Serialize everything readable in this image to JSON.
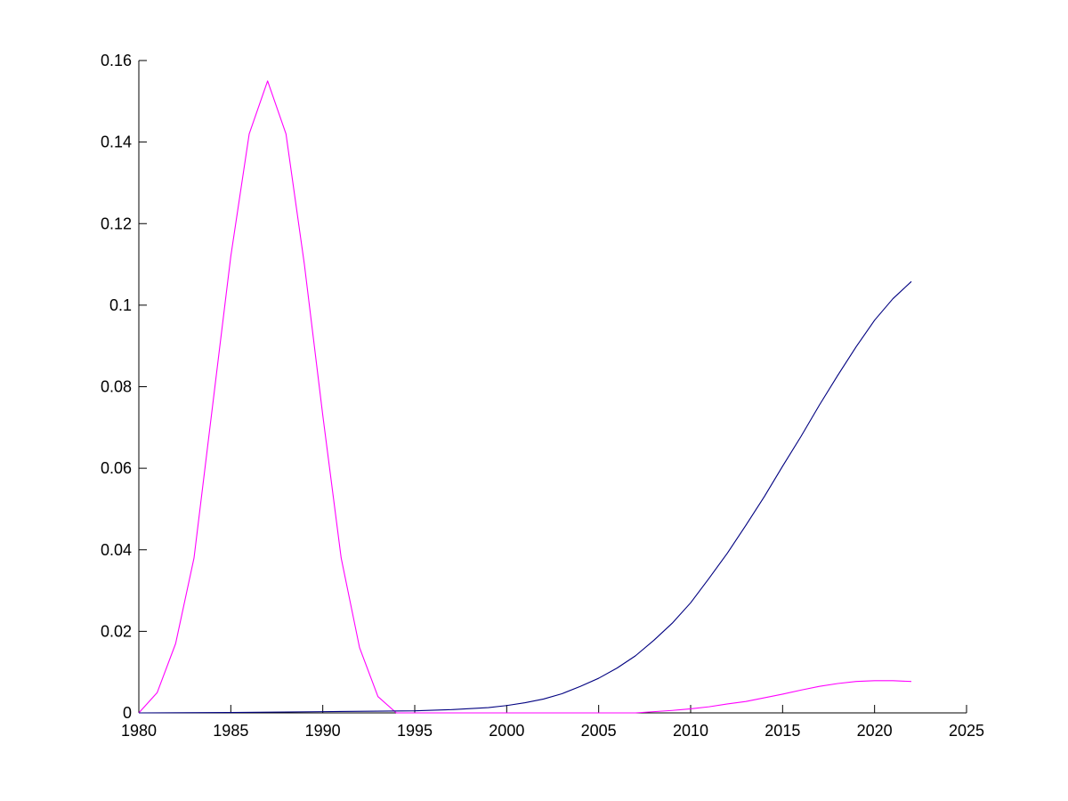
{
  "chart_data": {
    "type": "line",
    "title": "",
    "xlabel": "",
    "ylabel": "",
    "xlim": [
      1980,
      2025
    ],
    "ylim": [
      0,
      0.16
    ],
    "grid": false,
    "x_ticks": [
      1980,
      1985,
      1990,
      1995,
      2000,
      2005,
      2010,
      2015,
      2020,
      2025
    ],
    "x_tick_labels": [
      "1980",
      "1985",
      "1990",
      "1995",
      "2000",
      "2005",
      "2010",
      "2015",
      "2020",
      "2025"
    ],
    "y_ticks": [
      0,
      0.02,
      0.04,
      0.06,
      0.08,
      0.1,
      0.12,
      0.14,
      0.16
    ],
    "y_tick_labels": [
      "0",
      "0.02",
      "0.04",
      "0.06",
      "0.08",
      "0.1",
      "0.12",
      "0.14",
      "0.16"
    ],
    "series": [
      {
        "color": "#ff00ff",
        "x": [
          1980,
          1981,
          1982,
          1983,
          1984,
          1985,
          1986,
          1987,
          1988,
          1989,
          1990,
          1991,
          1992,
          1993,
          1994,
          1995,
          2000,
          2005,
          2006,
          2007,
          2008,
          2009,
          2010,
          2011,
          2012,
          2013,
          2014,
          2015,
          2016,
          2017,
          2018,
          2019,
          2020,
          2021,
          2022
        ],
        "y": [
          0,
          0.005,
          0.017,
          0.038,
          0.075,
          0.112,
          0.142,
          0.155,
          0.142,
          0.11,
          0.073,
          0.038,
          0.016,
          0.004,
          0,
          0,
          0,
          0,
          0,
          0,
          0.0003,
          0.0006,
          0.001,
          0.0015,
          0.0022,
          0.0028,
          0.0037,
          0.0046,
          0.0056,
          0.0065,
          0.0072,
          0.0077,
          0.0079,
          0.0079,
          0.0077
        ]
      },
      {
        "color": "#000080",
        "x": [
          1980,
          1985,
          1990,
          1995,
          1997,
          1999,
          2000,
          2001,
          2002,
          2003,
          2004,
          2005,
          2006,
          2007,
          2008,
          2009,
          2010,
          2011,
          2012,
          2013,
          2014,
          2015,
          2016,
          2017,
          2018,
          2019,
          2020,
          2021,
          2022
        ],
        "y": [
          0,
          0.0001,
          0.0003,
          0.0005,
          0.0008,
          0.0013,
          0.0018,
          0.0025,
          0.0034,
          0.0047,
          0.0065,
          0.0085,
          0.011,
          0.014,
          0.0178,
          0.022,
          0.027,
          0.033,
          0.0392,
          0.046,
          0.053,
          0.0605,
          0.0678,
          0.0755,
          0.0828,
          0.0898,
          0.0963,
          0.1016,
          0.1058
        ]
      }
    ]
  }
}
